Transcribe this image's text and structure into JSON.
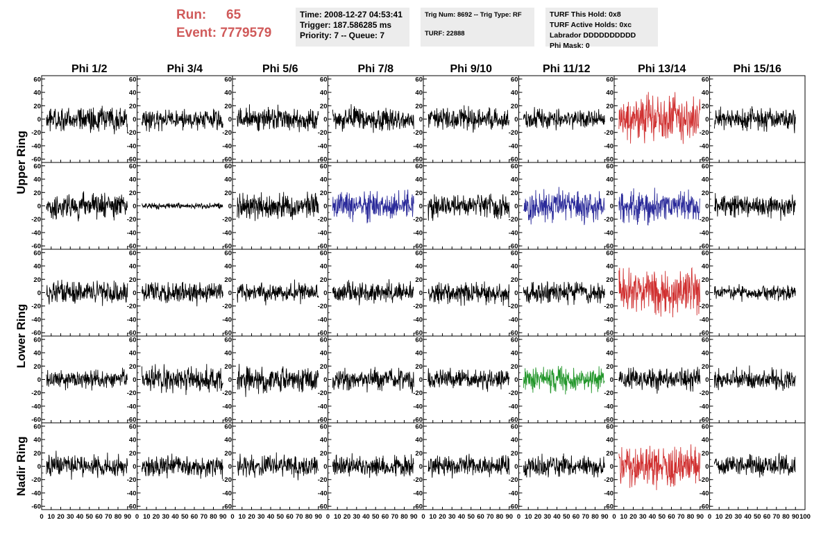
{
  "header": {
    "run_label": "Run:",
    "run_value": "65",
    "event_label": "Event:",
    "event_value": "7779579",
    "time": "Time: 2008-12-27 04:53:41",
    "trigger": "Trigger: 187.586285 ms",
    "priority": "Priority: 7 -- Queue: 7",
    "trig_num": "Trig Num: 8692 -- Trig Type: RF",
    "turf": "TURF: 22888",
    "turf_this_hold": "TURF This Hold: 0x8",
    "turf_active_holds": "TURF Active Holds: 0xc",
    "labrador": "Labrador DDDDDDDDDD",
    "phi_mask": "Phi Mask: 0"
  },
  "chart_data": {
    "type": "line",
    "columns": [
      "Phi 1/2",
      "Phi 3/4",
      "Phi 5/6",
      "Phi 7/8",
      "Phi 9/10",
      "Phi 11/12",
      "Phi 13/14",
      "Phi 15/16"
    ],
    "row_labels": [
      "Upper Ring",
      "Lower Ring",
      "Nadir Ring"
    ],
    "panel_rows": 5,
    "xlim": [
      0,
      100
    ],
    "ylim": [
      -65,
      65
    ],
    "x_ticks": [
      0,
      10,
      20,
      30,
      40,
      50,
      60,
      70,
      80,
      90,
      100
    ],
    "x_tick_labels": [
      "0",
      "10",
      "20",
      "30",
      "40",
      "50",
      "60",
      "70",
      "80",
      "90",
      "100"
    ],
    "y_ticks": [
      -60,
      -40,
      -20,
      0,
      20,
      40,
      60
    ],
    "y_tick_labels": [
      "-60",
      "-40",
      "-20",
      "0",
      "20",
      "40",
      "60"
    ],
    "waveform_samples": 260,
    "waveforms": [
      [
        {
          "amp": 12,
          "color": "#000000"
        },
        {
          "amp": 11,
          "color": "#000000"
        },
        {
          "amp": 12,
          "color": "#000000"
        },
        {
          "amp": 12,
          "color": "#000000"
        },
        {
          "amp": 11,
          "color": "#000000"
        },
        {
          "amp": 10,
          "color": "#000000"
        },
        {
          "amp": 22,
          "color": "#d03030"
        },
        {
          "amp": 11,
          "color": "#000000"
        }
      ],
      [
        {
          "amp": 13,
          "color": "#000000"
        },
        {
          "amp": 3,
          "color": "#000000"
        },
        {
          "amp": 13,
          "color": "#000000"
        },
        {
          "amp": 14,
          "color": "#2a2a9a"
        },
        {
          "amp": 12,
          "color": "#000000"
        },
        {
          "amp": 16,
          "color": "#2a2a9a"
        },
        {
          "amp": 16,
          "color": "#2a2a9a"
        },
        {
          "amp": 11,
          "color": "#000000"
        }
      ],
      [
        {
          "amp": 11,
          "color": "#000000"
        },
        {
          "amp": 11,
          "color": "#000000"
        },
        {
          "amp": 10,
          "color": "#000000"
        },
        {
          "amp": 11,
          "color": "#000000"
        },
        {
          "amp": 11,
          "color": "#000000"
        },
        {
          "amp": 11,
          "color": "#000000"
        },
        {
          "amp": 22,
          "color": "#d03030"
        },
        {
          "amp": 7,
          "color": "#000000"
        }
      ],
      [
        {
          "amp": 10,
          "color": "#000000"
        },
        {
          "amp": 13,
          "color": "#000000"
        },
        {
          "amp": 13,
          "color": "#000000"
        },
        {
          "amp": 11,
          "color": "#000000"
        },
        {
          "amp": 10,
          "color": "#000000"
        },
        {
          "amp": 13,
          "color": "#22962a"
        },
        {
          "amp": 11,
          "color": "#000000"
        },
        {
          "amp": 11,
          "color": "#000000"
        }
      ],
      [
        {
          "amp": 12,
          "color": "#000000"
        },
        {
          "amp": 11,
          "color": "#000000"
        },
        {
          "amp": 11,
          "color": "#000000"
        },
        {
          "amp": 11,
          "color": "#000000"
        },
        {
          "amp": 10,
          "color": "#000000"
        },
        {
          "amp": 11,
          "color": "#000000"
        },
        {
          "amp": 21,
          "color": "#d03030"
        },
        {
          "amp": 11,
          "color": "#000000"
        }
      ]
    ]
  }
}
